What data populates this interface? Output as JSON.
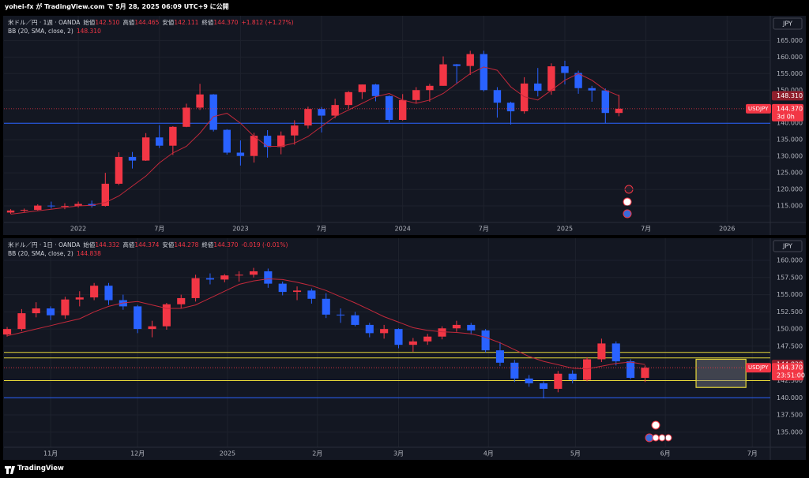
{
  "header": {
    "text": "yohei-fx が TradingView.com で 5月 28, 2025 06:09 UTC+9 に公開"
  },
  "footer": {
    "brand": "TradingView"
  },
  "chart_data": [
    {
      "type": "candlestick",
      "currency": "JPY",
      "legend": {
        "symbol": "米ドル／円 · 1週 · OANDA",
        "ohlc": [
          {
            "label": "始値",
            "value": "142.510"
          },
          {
            "label": "高値",
            "value": "144.465"
          },
          {
            "label": "安値",
            "value": "142.111"
          },
          {
            "label": "終値",
            "value": "144.370"
          }
        ],
        "change": "+1.812 (+1.27%)",
        "indicator": "BB (20, SMA, close, 2)",
        "indicator_value": "148.310"
      },
      "price_labels": {
        "symbol": "USDJPY",
        "countdown": "3d 0h"
      },
      "up_color": "#f23645",
      "down_color": "#2962ff",
      "bb_color": "#c2293b",
      "xlim": [
        -5.5,
        51.2
      ],
      "ylim": [
        110,
        172
      ],
      "xticks": [
        {
          "value": 0,
          "label": "2022"
        },
        {
          "value": 6,
          "label": "7月"
        },
        {
          "value": 12,
          "label": "2023"
        },
        {
          "value": 18,
          "label": "7月"
        },
        {
          "value": 24,
          "label": "2024"
        },
        {
          "value": 30,
          "label": "7月"
        },
        {
          "value": 36,
          "label": "2025"
        },
        {
          "value": 42,
          "label": "7月"
        },
        {
          "value": 48,
          "label": "2026"
        }
      ],
      "yticks": [
        {
          "value": 115,
          "label": "115.000"
        },
        {
          "value": 120,
          "label": "120.000"
        },
        {
          "value": 125,
          "label": "125.000"
        },
        {
          "value": 130,
          "label": "130.000"
        },
        {
          "value": 135,
          "label": "135.000"
        },
        {
          "value": 140,
          "label": "140.000"
        },
        {
          "value": 150,
          "label": "150.000"
        },
        {
          "value": 155,
          "label": "155.000"
        },
        {
          "value": 160,
          "label": "160.000"
        },
        {
          "value": 165,
          "label": "165.000"
        }
      ],
      "x": [
        -5,
        -4,
        -3,
        -2,
        -1,
        0,
        1,
        2,
        3,
        4,
        5,
        6,
        7,
        8,
        9,
        10,
        11,
        12,
        13,
        14,
        15,
        16,
        17,
        18,
        19,
        20,
        21,
        22,
        23,
        24,
        25,
        26,
        27,
        28,
        29,
        30,
        31,
        32,
        33,
        34,
        35,
        36,
        37,
        38,
        39,
        40
      ],
      "open": [
        113.0,
        113.6,
        113.8,
        115.1,
        114.9,
        115.0,
        115.6,
        115.0,
        121.7,
        129.8,
        128.7,
        135.7,
        133.2,
        138.9,
        144.7,
        148.7,
        138.0,
        131.1,
        130.1,
        136.2,
        132.8,
        136.3,
        139.3,
        144.3,
        142.3,
        145.5,
        149.4,
        151.7,
        148.2,
        141.0,
        147.0,
        150.0,
        151.3,
        157.8,
        157.3,
        160.9,
        150.0,
        146.2,
        143.6,
        152.0,
        149.8,
        157.2,
        155.2,
        150.6,
        149.9,
        143.1
      ],
      "high": [
        114.0,
        114.2,
        115.5,
        116.3,
        115.8,
        116.3,
        116.6,
        125.0,
        131.2,
        131.3,
        137.0,
        139.4,
        139.1,
        145.9,
        151.9,
        148.8,
        138.2,
        134.8,
        137.1,
        137.9,
        137.5,
        140.9,
        145.0,
        144.9,
        147.4,
        149.7,
        151.7,
        151.9,
        148.4,
        148.8,
        150.9,
        151.9,
        160.2,
        157.9,
        161.9,
        161.9,
        150.9,
        146.5,
        153.9,
        156.7,
        158.1,
        158.9,
        155.9,
        151.3,
        150.5,
        148.6
      ],
      "low": [
        112.6,
        113.0,
        113.5,
        114.2,
        114.0,
        114.5,
        114.5,
        114.8,
        121.3,
        126.3,
        128.6,
        132.5,
        130.4,
        138.8,
        144.0,
        137.5,
        130.5,
        127.2,
        128.1,
        129.6,
        130.6,
        133.5,
        138.4,
        137.2,
        141.5,
        144.4,
        147.3,
        146.6,
        140.2,
        140.8,
        145.9,
        146.5,
        151.3,
        151.9,
        154.6,
        149.6,
        141.7,
        139.6,
        142.9,
        148.1,
        148.6,
        151.7,
        148.9,
        146.5,
        139.9,
        142.1
      ],
      "close": [
        113.6,
        113.8,
        115.1,
        114.9,
        115.0,
        115.6,
        115.0,
        121.7,
        129.8,
        128.7,
        135.7,
        133.2,
        138.9,
        144.7,
        148.7,
        138.0,
        131.1,
        130.1,
        136.2,
        132.8,
        136.3,
        139.3,
        144.3,
        142.3,
        145.5,
        149.4,
        151.7,
        148.2,
        141.0,
        147.0,
        150.0,
        151.3,
        157.8,
        157.3,
        160.9,
        150.0,
        146.2,
        143.6,
        152.0,
        149.8,
        157.2,
        155.2,
        150.6,
        149.9,
        143.1,
        144.37
      ],
      "bb": [
        112.5,
        113,
        113.5,
        114,
        114.5,
        115,
        115.2,
        116,
        118,
        121,
        124,
        128,
        131,
        133,
        137,
        142,
        143,
        140,
        136,
        133,
        133,
        134,
        136,
        139,
        142,
        144,
        146,
        148,
        149,
        147,
        146,
        147,
        149,
        152,
        155,
        157,
        156,
        151,
        148,
        147,
        150,
        153,
        155,
        153,
        150,
        148.31
      ],
      "hlines": [
        {
          "value": 140,
          "color": "#2962ff"
        }
      ]
    },
    {
      "type": "candlestick",
      "currency": "JPY",
      "legend": {
        "symbol": "米ドル／円 · 1日 · OANDA",
        "ohlc": [
          {
            "label": "始値",
            "value": "144.332"
          },
          {
            "label": "高値",
            "value": "144.374"
          },
          {
            "label": "安値",
            "value": "144.278"
          },
          {
            "label": "終値",
            "value": "144.370"
          }
        ],
        "change": "-0.019 (-0.01%)",
        "indicator": "BB (20, SMA, close, 2)",
        "indicator_value": "144.838"
      },
      "price_labels": {
        "symbol": "USDJPY",
        "countdown": "23:51:00"
      },
      "up_color": "#f23645",
      "down_color": "#2962ff",
      "bb_color": "#c2293b",
      "xlim": [
        14.9,
        279.2
      ],
      "ylim": [
        132.8,
        162.87
      ],
      "xticks": [
        {
          "value": 31,
          "label": "11月"
        },
        {
          "value": 61,
          "label": "12月"
        },
        {
          "value": 92,
          "label": "2025"
        },
        {
          "value": 123,
          "label": "2月"
        },
        {
          "value": 151,
          "label": "3月"
        },
        {
          "value": 182,
          "label": "4月"
        },
        {
          "value": 212,
          "label": "5月"
        },
        {
          "value": 243,
          "label": "6月"
        },
        {
          "value": 273,
          "label": "7月"
        }
      ],
      "yticks": [
        {
          "value": 135,
          "label": "135.000"
        },
        {
          "value": 137.5,
          "label": "137.500"
        },
        {
          "value": 140,
          "label": "140.000"
        },
        {
          "value": 142.5,
          "label": "142.500"
        },
        {
          "value": 147.5,
          "label": "147.500"
        },
        {
          "value": 150,
          "label": "150.000"
        },
        {
          "value": 152.5,
          "label": "152.500"
        },
        {
          "value": 155,
          "label": "155.000"
        },
        {
          "value": 157.5,
          "label": "157.500"
        },
        {
          "value": 160,
          "label": "160.000"
        }
      ],
      "x": [
        16,
        21,
        26,
        31,
        36,
        41,
        46,
        51,
        56,
        61,
        66,
        71,
        76,
        81,
        86,
        91,
        96,
        101,
        106,
        111,
        116,
        121,
        126,
        131,
        136,
        141,
        146,
        151,
        156,
        161,
        166,
        171,
        176,
        181,
        186,
        191,
        196,
        201,
        206,
        211,
        216,
        221,
        226,
        231,
        236
      ],
      "open": [
        149.2,
        150.0,
        152.3,
        153.0,
        152.0,
        154.3,
        154.6,
        156.3,
        154.2,
        153.3,
        150.0,
        150.4,
        153.6,
        154.5,
        157.4,
        157.2,
        157.8,
        157.9,
        158.4,
        156.6,
        155.4,
        155.6,
        154.4,
        152.1,
        152.0,
        150.6,
        149.4,
        150.0,
        147.7,
        148.2,
        148.9,
        150.1,
        150.6,
        149.8,
        146.9,
        145.1,
        142.8,
        142.1,
        141.3,
        143.5,
        142.6,
        145.6,
        147.9,
        145.3,
        142.9
      ],
      "high": [
        150.3,
        152.9,
        153.9,
        153.3,
        154.7,
        155.5,
        156.7,
        156.7,
        155.0,
        153.5,
        151.2,
        153.8,
        155.0,
        157.9,
        158.1,
        158.0,
        158.4,
        158.9,
        158.8,
        156.9,
        156.2,
        155.9,
        155.2,
        153.0,
        152.5,
        150.9,
        150.6,
        150.1,
        148.7,
        149.3,
        150.4,
        151.2,
        150.9,
        150.0,
        148.1,
        145.5,
        143.3,
        142.4,
        143.9,
        144.0,
        145.9,
        148.6,
        148.2,
        145.6,
        144.7
      ],
      "low": [
        148.9,
        149.7,
        151.7,
        151.3,
        151.5,
        153.3,
        154.2,
        153.5,
        152.8,
        149.4,
        148.8,
        149.9,
        153.0,
        154.0,
        156.5,
        156.8,
        156.9,
        157.5,
        156.0,
        154.9,
        154.2,
        153.7,
        151.6,
        150.9,
        150.4,
        148.8,
        148.6,
        147.2,
        146.7,
        147.7,
        148.5,
        149.6,
        149.2,
        146.6,
        144.6,
        142.3,
        141.6,
        139.9,
        140.8,
        142.1,
        142.4,
        145.2,
        144.7,
        142.7,
        142.3
      ],
      "close": [
        150.0,
        152.3,
        153.0,
        152.0,
        154.3,
        154.6,
        156.3,
        154.2,
        153.3,
        150.0,
        150.4,
        153.6,
        154.5,
        157.4,
        157.2,
        157.8,
        157.9,
        158.4,
        156.6,
        155.4,
        155.6,
        154.4,
        152.1,
        152.0,
        150.6,
        149.4,
        150.0,
        147.7,
        148.2,
        148.9,
        150.1,
        150.6,
        149.8,
        146.9,
        145.1,
        142.8,
        142.1,
        141.3,
        143.5,
        142.6,
        145.6,
        147.9,
        145.3,
        142.9,
        144.37
      ],
      "bb": [
        149,
        149.5,
        150,
        150.5,
        151,
        151.5,
        152.5,
        153.3,
        153.8,
        154,
        153.5,
        153,
        153,
        153.5,
        154.5,
        155.5,
        156.5,
        157,
        157.3,
        157.2,
        156.8,
        156.3,
        155.6,
        154.7,
        153.8,
        152.8,
        151.8,
        151,
        150.2,
        149.8,
        149.6,
        149.5,
        149.3,
        148.8,
        148,
        147,
        146,
        145.3,
        144.8,
        144.3,
        144.2,
        144.6,
        145,
        145.2,
        144.838
      ],
      "hlines": [
        {
          "value": 146.6,
          "color": "#e8d83a"
        },
        {
          "value": 145.8,
          "color": "#e8d83a"
        },
        {
          "value": 142.5,
          "color": "#e8d83a"
        },
        {
          "value": 140,
          "color": "#2962ff"
        }
      ],
      "box": {
        "x": [
          253.6,
          270.8
        ],
        "y": [
          141.5,
          145.6
        ],
        "color": "#e8d83a"
      }
    }
  ]
}
